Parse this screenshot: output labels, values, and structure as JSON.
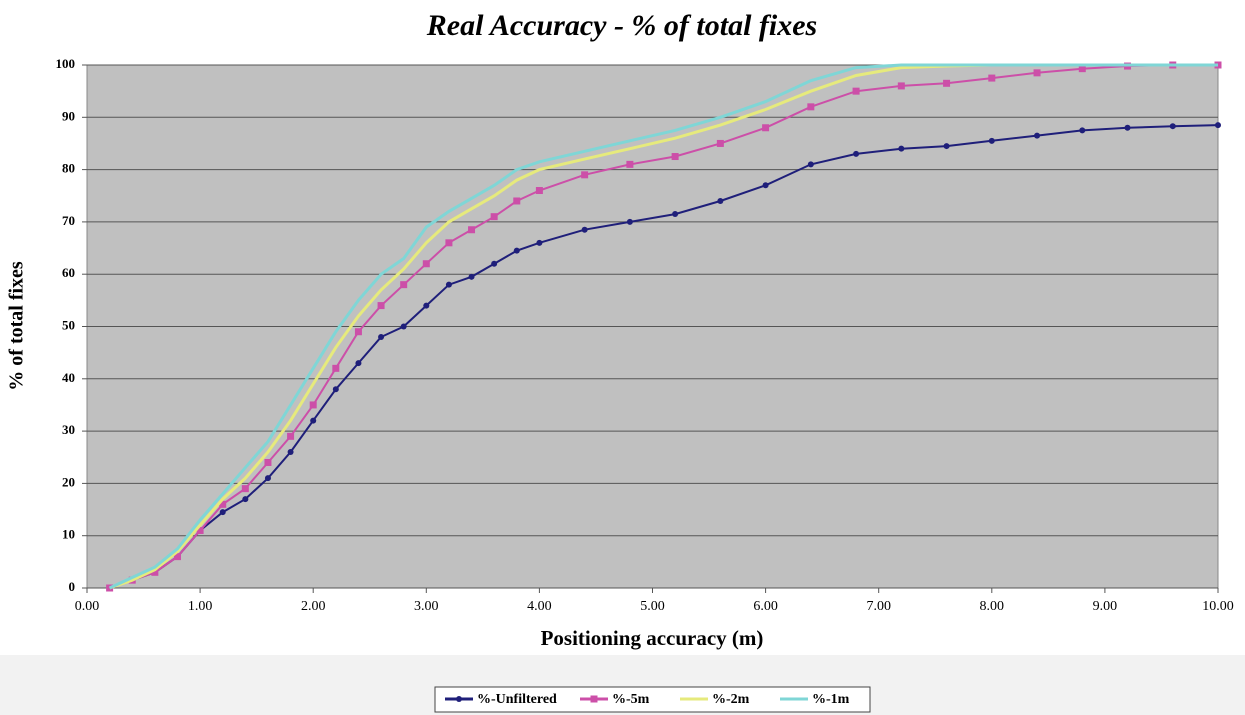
{
  "chart_data": {
    "type": "line",
    "title": "Real Accuracy - % of total fixes",
    "x_label": "Positioning accuracy (m)",
    "y_label": "% of total fixes",
    "x": [
      0.2,
      0.4,
      0.6,
      0.8,
      1.0,
      1.2,
      1.4,
      1.6,
      1.8,
      2.0,
      2.2,
      2.4,
      2.6,
      2.8,
      3.0,
      3.2,
      3.4,
      3.6,
      3.8,
      4.0,
      4.4,
      4.8,
      5.2,
      5.6,
      6.0,
      6.4,
      6.8,
      7.2,
      7.6,
      8.0,
      8.4,
      8.8,
      9.2,
      9.6,
      10.0
    ],
    "series": [
      {
        "name": "%-Unfiltered",
        "color": "#1f1f7a",
        "marker": "circle",
        "values": [
          0,
          1.5,
          3,
          6,
          11,
          14.5,
          17,
          21,
          26,
          32,
          38,
          43,
          48,
          50,
          54,
          58,
          59.5,
          62,
          64.5,
          66,
          68.5,
          70,
          71.5,
          74,
          77,
          81,
          83,
          84,
          84.5,
          85.5,
          86.5,
          87.5,
          88,
          88.3,
          88.5
        ]
      },
      {
        "name": "%-5m",
        "color": "#cc4fa8",
        "marker": "square",
        "values": [
          0,
          1.5,
          3,
          6,
          11,
          16,
          19,
          24,
          29,
          35,
          42,
          49,
          54,
          58,
          62,
          66,
          68.5,
          71,
          74,
          76,
          79,
          81,
          82.5,
          85,
          88,
          92,
          95,
          96,
          96.5,
          97.5,
          98.5,
          99.3,
          99.8,
          100,
          100
        ]
      },
      {
        "name": "%-2m",
        "color": "#e6ea7c",
        "marker": "none",
        "values": [
          0,
          1.5,
          3.5,
          7,
          12,
          17,
          21,
          26,
          32,
          39,
          46,
          52,
          57,
          61,
          66,
          70,
          72.5,
          75,
          78,
          80,
          82,
          84,
          86,
          88.5,
          91.5,
          95,
          98,
          99.5,
          99.8,
          100,
          100,
          100,
          100,
          100,
          100
        ]
      },
      {
        "name": "%-1m",
        "color": "#7fd6d6",
        "marker": "none",
        "values": [
          0,
          2,
          4,
          7.5,
          13,
          18,
          23,
          28,
          35,
          42,
          49,
          55,
          60,
          63,
          69,
          72,
          74.5,
          77,
          80,
          81.5,
          83.5,
          85.5,
          87.5,
          90,
          93,
          97,
          99.5,
          100,
          100,
          100,
          100,
          100,
          100,
          100,
          100
        ]
      }
    ],
    "xlim": [
      0,
      10
    ],
    "xticks": [
      {
        "value": 0,
        "label": "0.00"
      },
      {
        "value": 1,
        "label": "1.00"
      },
      {
        "value": 2,
        "label": "2.00"
      },
      {
        "value": 3,
        "label": "3.00"
      },
      {
        "value": 4,
        "label": "4.00"
      },
      {
        "value": 5,
        "label": "5.00"
      },
      {
        "value": 6,
        "label": "6.00"
      },
      {
        "value": 7,
        "label": "7.00"
      },
      {
        "value": 8,
        "label": "8.00"
      },
      {
        "value": 9,
        "label": "9.00"
      },
      {
        "value": 10,
        "label": "10.00"
      }
    ],
    "ylim": [
      0,
      100
    ],
    "yticks": [
      0,
      10,
      20,
      30,
      40,
      50,
      60,
      70,
      80,
      90,
      100
    ],
    "grid": true,
    "legend": "bottom"
  }
}
